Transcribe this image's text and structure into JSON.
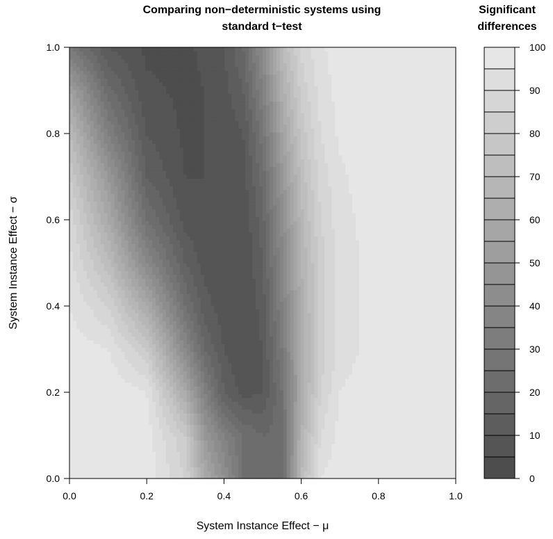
{
  "chart_data": {
    "type": "heatmap",
    "subtype": "filled-contour",
    "title": [
      "Comparing non−deterministic systems using",
      "standard t−test"
    ],
    "xlabel": "System Instance Effect − μ",
    "ylabel": "System Instance Effect − σ",
    "xlim": [
      0,
      1
    ],
    "ylim": [
      0,
      1
    ],
    "x_ticks": [
      "0.0",
      "0.2",
      "0.4",
      "0.6",
      "0.8",
      "1.0"
    ],
    "y_ticks": [
      "0.0",
      "0.2",
      "0.4",
      "0.6",
      "0.8",
      "1.0"
    ],
    "legend": {
      "title": [
        "Significant",
        "differences"
      ],
      "ticks": [
        "0",
        "10",
        "20",
        "30",
        "40",
        "50",
        "60",
        "70",
        "80",
        "90",
        "100"
      ],
      "levels": [
        0,
        5,
        10,
        15,
        20,
        25,
        30,
        35,
        40,
        45,
        50,
        55,
        60,
        65,
        70,
        75,
        80,
        85,
        90,
        95,
        100
      ],
      "color_low": "#4d4d4d",
      "color_high": "#e6e6e6"
    },
    "description_of_field": "Percent of significant differences as a function of mu (x) and sigma (y); a dark valley near mu 0.2-0.45 that widens upward, bright on the right (mu > 0.65) and at bottom-left.",
    "grid": {
      "x": [
        0.0,
        0.1,
        0.2,
        0.3,
        0.35,
        0.4,
        0.45,
        0.5,
        0.55,
        0.6,
        0.65,
        0.7,
        0.8,
        0.9,
        1.0
      ],
      "y": [
        0.0,
        0.1,
        0.2,
        0.3,
        0.4,
        0.5,
        0.6,
        0.7,
        0.8,
        0.9,
        1.0
      ],
      "z": [
        [
          100,
          100,
          98,
          85,
          60,
          45,
          25,
          20,
          20,
          70,
          95,
          98,
          100,
          100,
          100
        ],
        [
          100,
          100,
          98,
          80,
          50,
          35,
          25,
          20,
          22,
          65,
          90,
          97,
          100,
          100,
          100
        ],
        [
          100,
          100,
          95,
          60,
          35,
          15,
          8,
          10,
          25,
          60,
          85,
          95,
          99,
          100,
          100
        ],
        [
          98,
          95,
          80,
          40,
          20,
          10,
          5,
          10,
          30,
          60,
          82,
          92,
          98,
          100,
          100
        ],
        [
          95,
          85,
          60,
          25,
          12,
          7,
          5,
          12,
          35,
          62,
          82,
          92,
          98,
          100,
          100
        ],
        [
          92,
          72,
          40,
          15,
          8,
          6,
          5,
          15,
          38,
          65,
          82,
          92,
          98,
          100,
          100
        ],
        [
          88,
          60,
          25,
          8,
          6,
          5,
          6,
          18,
          42,
          68,
          85,
          93,
          98,
          100,
          100
        ],
        [
          80,
          50,
          15,
          5,
          5,
          5,
          8,
          22,
          48,
          72,
          87,
          94,
          99,
          100,
          100
        ],
        [
          70,
          35,
          10,
          4,
          5,
          6,
          10,
          28,
          55,
          77,
          90,
          96,
          99,
          100,
          100
        ],
        [
          55,
          22,
          6,
          4,
          5,
          8,
          15,
          35,
          62,
          82,
          92,
          97,
          100,
          100,
          100
        ],
        [
          30,
          10,
          4,
          4,
          6,
          10,
          20,
          42,
          70,
          86,
          94,
          98,
          100,
          100,
          100
        ]
      ]
    }
  }
}
